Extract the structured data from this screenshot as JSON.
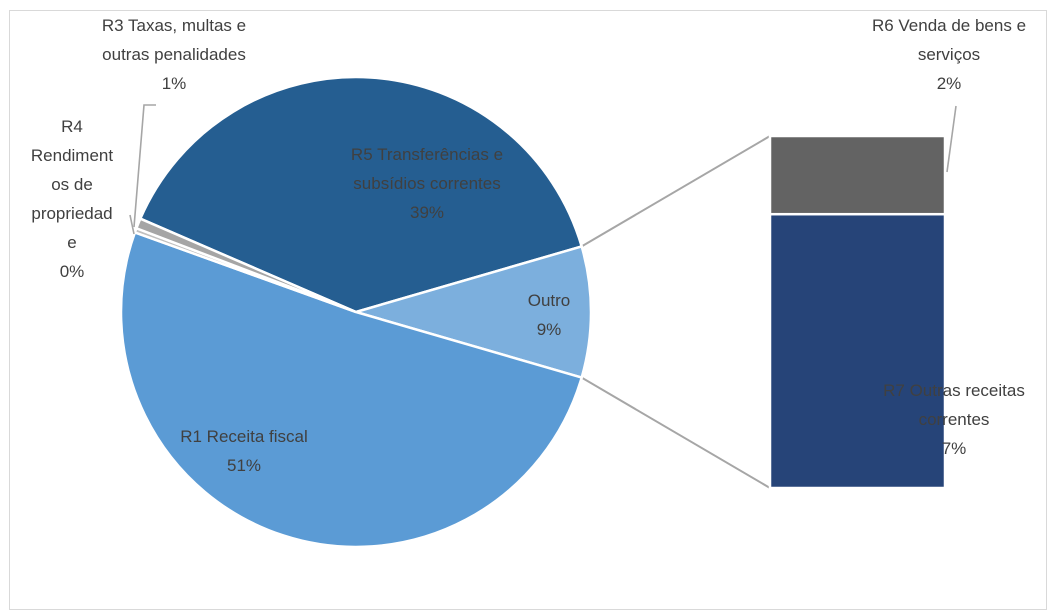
{
  "chart_data": {
    "type": "pie",
    "subtype": "bar-of-pie",
    "pie": {
      "slices": [
        {
          "name": "R5 Transferências e subsídios correntes",
          "label_lines": [
            "R5 Transferências e",
            "subsídios correntes",
            "39%"
          ],
          "value": 39,
          "color": "#255e91"
        },
        {
          "name": "Outro",
          "label_lines": [
            "Outro",
            "9%"
          ],
          "value": 9,
          "color": "#7cafdd"
        },
        {
          "name": "R1 Receita fiscal",
          "label_lines": [
            "R1 Receita fiscal",
            "51%"
          ],
          "value": 51,
          "color": "#5b9bd5"
        },
        {
          "name": "R4 Rendimentos de propriedade",
          "label_lines": [
            "R4",
            "Rendiment",
            "os de",
            "propriedad",
            "e",
            "0%"
          ],
          "value": 0.3,
          "color": "#c0c0c0"
        },
        {
          "name": "R3 Taxas, multas e outras penalidades",
          "label_lines": [
            "R3 Taxas, multas e",
            "outras penalidades",
            "1%"
          ],
          "value": 0.7,
          "color": "#a5a5a5"
        }
      ]
    },
    "bar": {
      "segments": [
        {
          "name": "R6 Venda de bens e serviços",
          "label_lines": [
            "R6 Venda de bens e",
            "serviços",
            "2%"
          ],
          "value": 2,
          "color": "#636363"
        },
        {
          "name": "R7 Outras receitas correntes",
          "label_lines": [
            "R7 Outras receitas",
            "correntes",
            "7%"
          ],
          "value": 7,
          "color": "#264478"
        }
      ]
    },
    "legend": "none"
  }
}
